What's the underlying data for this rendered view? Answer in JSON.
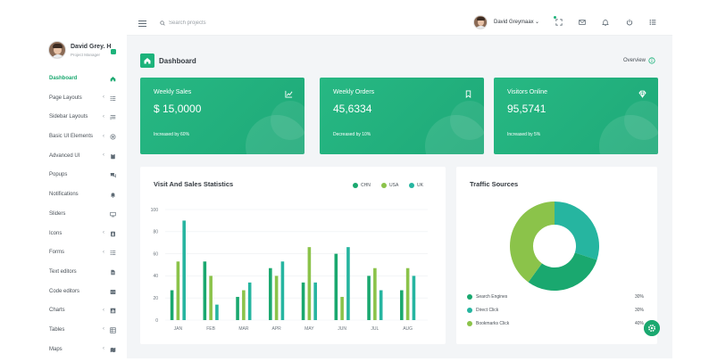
{
  "colors": {
    "accent": "#1db37b",
    "chn": "#1aa86f",
    "usa": "#8bc34a",
    "uk": "#26b5a0",
    "card": "#27b883"
  },
  "sidebar": {
    "user_name": "David Grey. H",
    "user_role": "Project Manager",
    "items": [
      {
        "label": "Dashboard",
        "icon": "home-icon",
        "chevron": ""
      },
      {
        "label": "Page Layouts",
        "icon": "list-icon",
        "chevron": "‹"
      },
      {
        "label": "Sidebar Layouts",
        "icon": "layout-icon",
        "chevron": "‹"
      },
      {
        "label": "Basic UI Elements",
        "icon": "plus-circle-icon",
        "chevron": "‹"
      },
      {
        "label": "Advanced UI",
        "icon": "clipboard-icon",
        "chevron": "‹"
      },
      {
        "label": "Popups",
        "icon": "chat-icon",
        "chevron": ""
      },
      {
        "label": "Notifications",
        "icon": "bell-icon",
        "chevron": ""
      },
      {
        "label": "Sliders",
        "icon": "monitor-icon",
        "chevron": ""
      },
      {
        "label": "Icons",
        "icon": "user-card-icon",
        "chevron": "‹"
      },
      {
        "label": "Forms",
        "icon": "list-icon",
        "chevron": "‹"
      },
      {
        "label": "Text editors",
        "icon": "file-icon",
        "chevron": ""
      },
      {
        "label": "Code editors",
        "icon": "code-icon",
        "chevron": ""
      },
      {
        "label": "Charts",
        "icon": "chart-icon",
        "chevron": "‹"
      },
      {
        "label": "Tables",
        "icon": "table-icon",
        "chevron": "‹"
      },
      {
        "label": "Maps",
        "icon": "map-icon",
        "chevron": "‹"
      }
    ]
  },
  "header": {
    "search_placeholder": "Search projects",
    "user_name": "David Greymaax",
    "dropdown_glyph": "⌄"
  },
  "page": {
    "title": "Dashboard",
    "overview_label": "Overview"
  },
  "stats": [
    {
      "title": "Weekly Sales",
      "value": "$ 15,0000",
      "sub": "Increased by 60%",
      "icon": "chart-line-icon"
    },
    {
      "title": "Weekly Orders",
      "value": "45,6334",
      "sub": "Decreased by 10%",
      "icon": "bookmark-icon"
    },
    {
      "title": "Visitors Online",
      "value": "95,5741",
      "sub": "Increased by 5%",
      "icon": "diamond-icon"
    }
  ],
  "visit_chart": {
    "title": "Visit And Sales Statistics",
    "legend": [
      "CHN",
      "USA",
      "UK"
    ]
  },
  "chart_data": {
    "type": "bar",
    "title": "Visit And Sales Statistics",
    "categories": [
      "JAN",
      "FEB",
      "MAR",
      "APR",
      "MAY",
      "JUN",
      "JUL",
      "AUG"
    ],
    "ylim": [
      0,
      100
    ],
    "yticks": [
      "0",
      "20",
      "40",
      "60",
      "80",
      "100"
    ],
    "grid": true,
    "legend_position": "top-right",
    "series": [
      {
        "name": "CHN",
        "values": [
          27,
          53,
          21,
          47,
          34,
          60,
          40,
          27
        ]
      },
      {
        "name": "USA",
        "values": [
          53,
          40,
          27,
          40,
          66,
          21,
          47,
          47
        ]
      },
      {
        "name": "UK",
        "values": [
          90,
          14,
          34,
          53,
          34,
          66,
          27,
          40
        ]
      }
    ]
  },
  "traffic": {
    "title": "Traffic Sources",
    "sources": [
      {
        "label": "Search Engines",
        "pct": "30%"
      },
      {
        "label": "Direct Click",
        "pct": "30%"
      },
      {
        "label": "Bookmarks Click",
        "pct": "40%"
      }
    ],
    "donut": [
      30,
      30,
      40
    ]
  }
}
